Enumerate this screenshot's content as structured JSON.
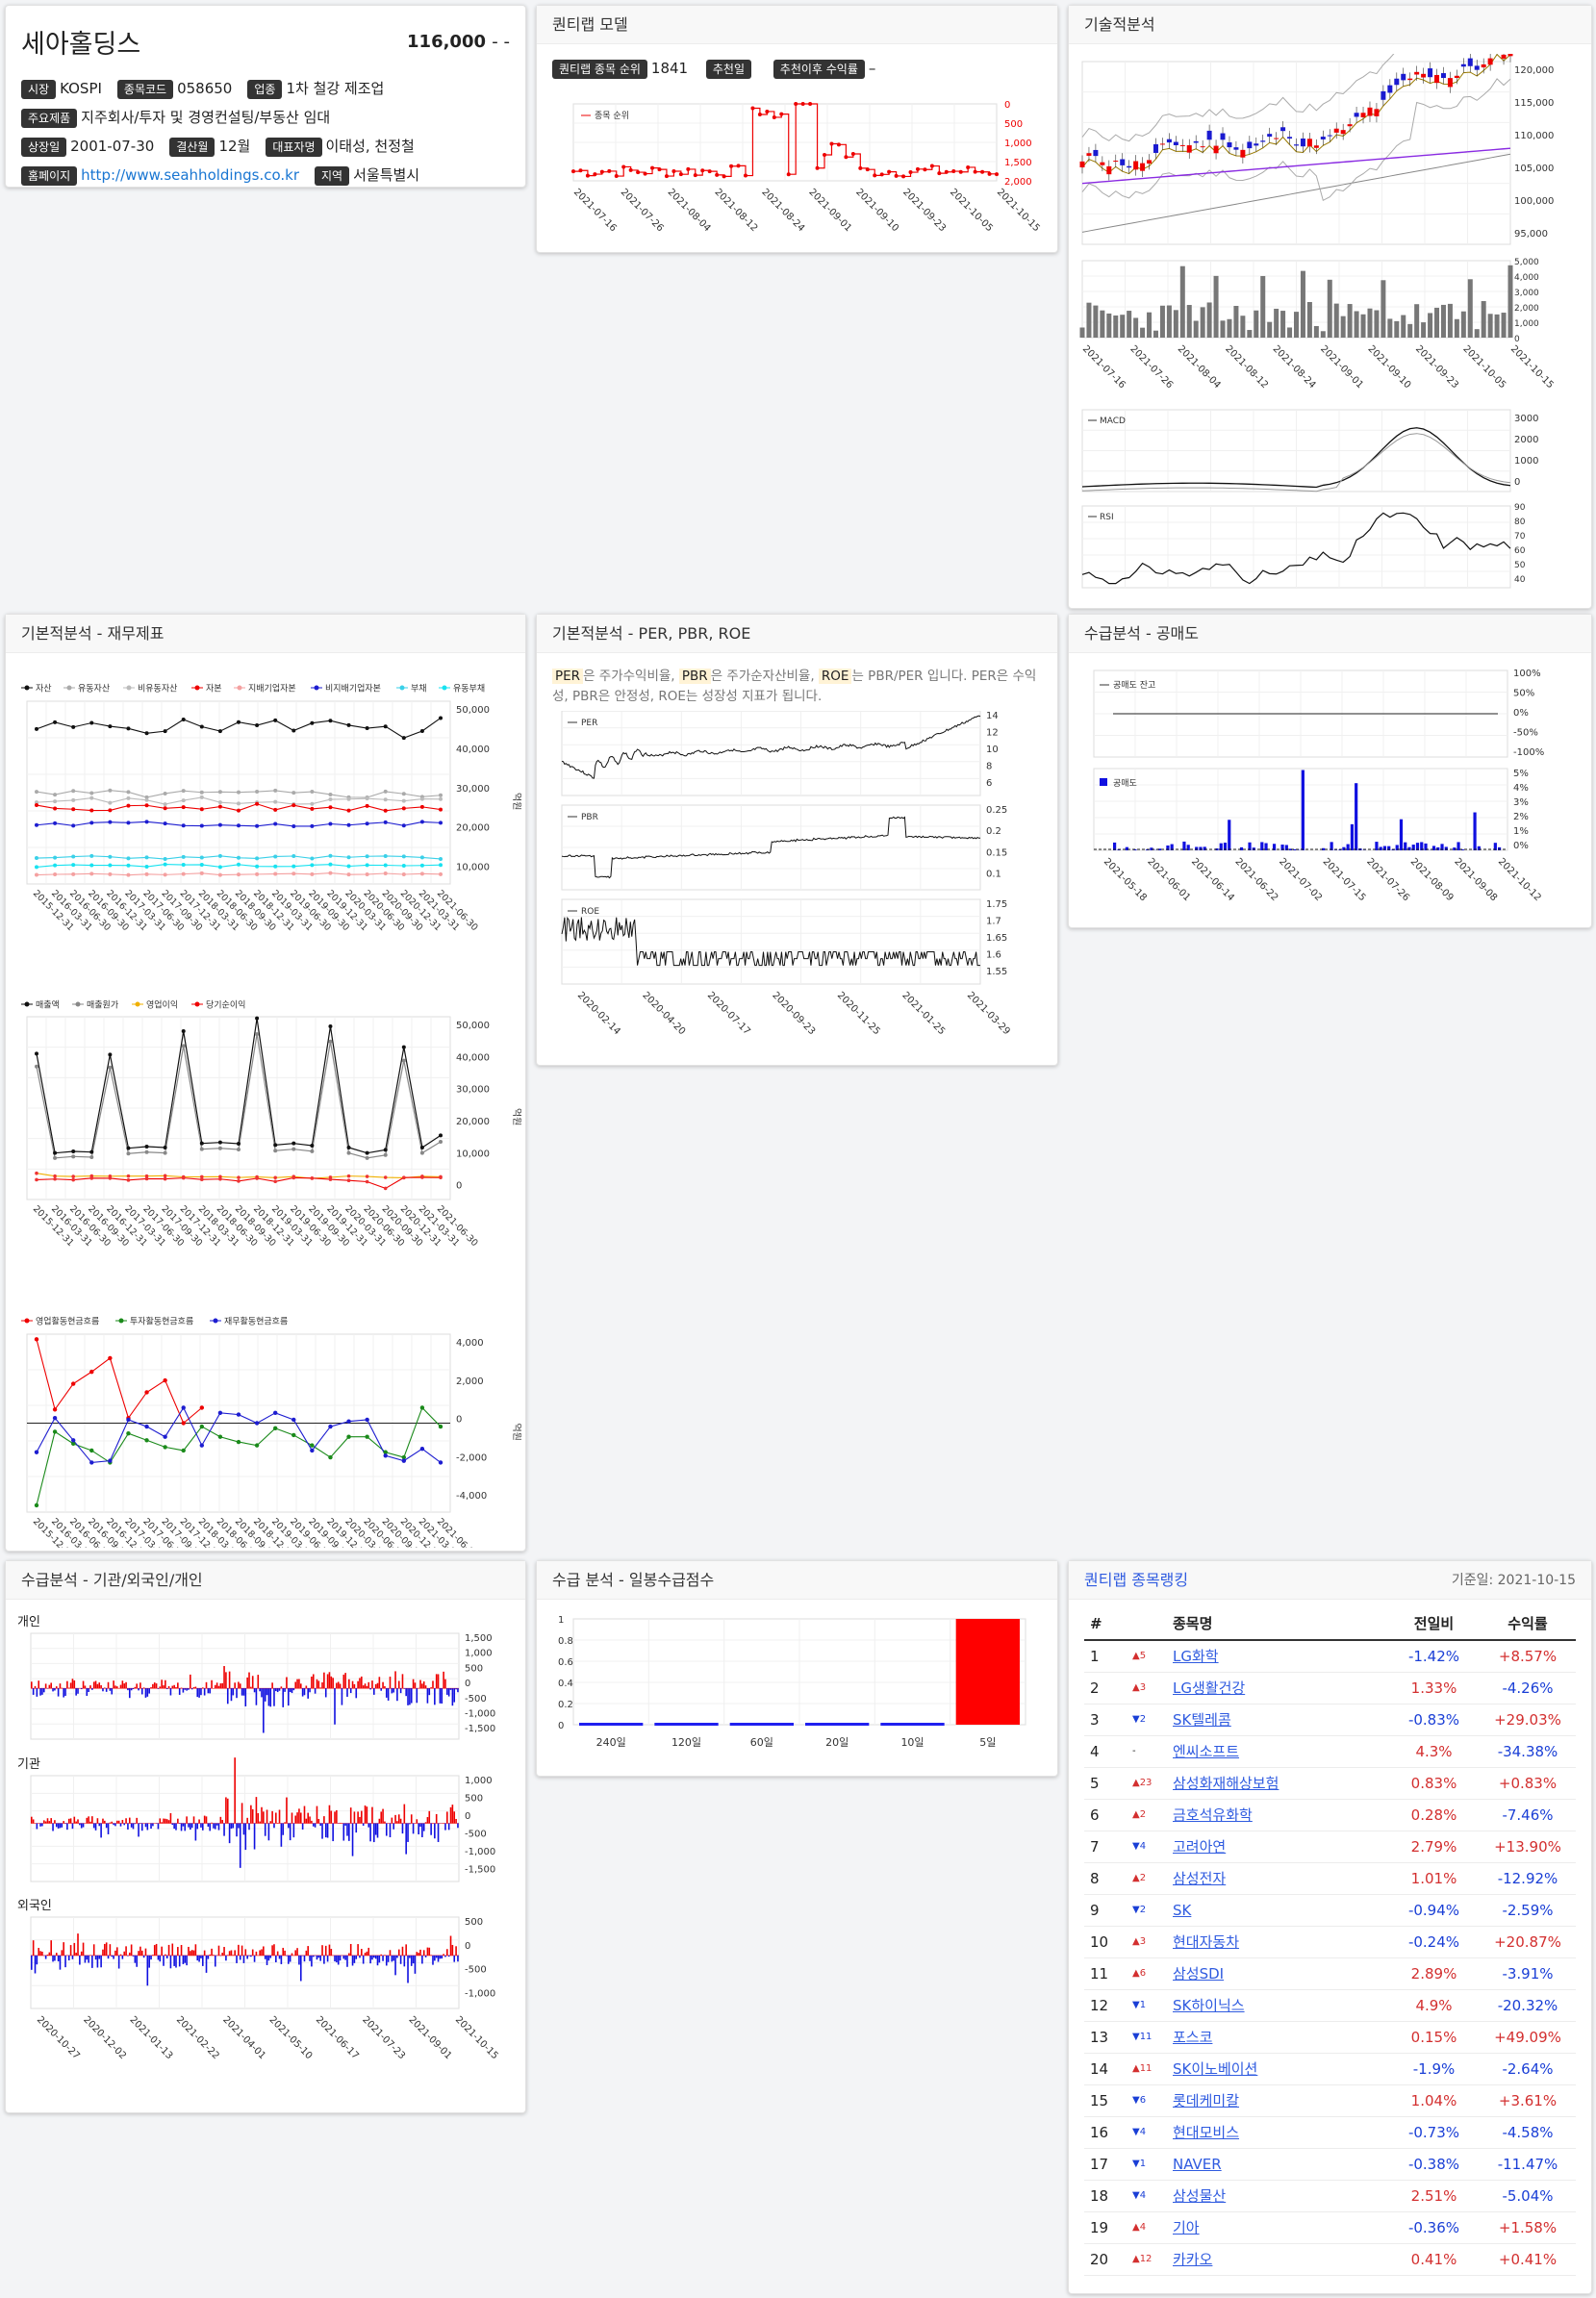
{
  "company": {
    "name": "세아홀딩스",
    "price": "116,000",
    "change": "- -",
    "fields": [
      [
        [
          "시장",
          "KOSPI"
        ],
        [
          "종목코드",
          "058650"
        ],
        [
          "업종",
          "1차 철강 제조업"
        ]
      ],
      [
        [
          "주요제품",
          "지주회사/투자 및 경영컨설팅/부동산 임대"
        ]
      ],
      [
        [
          "상장일",
          "2001-07-30"
        ],
        [
          "결산월",
          "12월"
        ],
        [
          "대표자명",
          "이태성, 천정철"
        ]
      ],
      [
        [
          "홈페이지",
          "http://www.seahholdings.co.kr"
        ],
        [
          "지역",
          "서울특별시"
        ]
      ]
    ]
  },
  "quant": {
    "title": "퀀티랩 모델",
    "rank_label": "퀀티랩 종목 순위",
    "rank_value": "1841",
    "rec_label": "추천일",
    "rec_value": "",
    "ret_label": "추천이후 수익률",
    "ret_value": "–",
    "legend": "종목 순위",
    "y_ticks": [
      "0",
      "500",
      "1,000",
      "1,500",
      "2,000"
    ],
    "x_ticks": [
      "2021-07-16",
      "2021-07-26",
      "2021-08-04",
      "2021-08-12",
      "2021-08-24",
      "2021-09-01",
      "2021-09-10",
      "2021-09-23",
      "2021-10-05",
      "2021-10-15"
    ]
  },
  "tech": {
    "title": "기술적분석",
    "price_ticks": [
      "120,000",
      "115,000",
      "110,000",
      "105,000",
      "100,000",
      "95,000"
    ],
    "vol_ticks": [
      "5,000",
      "4,000",
      "3,000",
      "2,000",
      "1,000",
      "0"
    ],
    "x_ticks": [
      "2021-07-16",
      "2021-07-26",
      "2021-08-04",
      "2021-08-12",
      "2021-08-24",
      "2021-09-01",
      "2021-09-10",
      "2021-09-23",
      "2021-10-05",
      "2021-10-15"
    ],
    "macd_label": "MACD",
    "macd_ticks": [
      "3000",
      "2000",
      "1000",
      "0"
    ],
    "rsi_label": "RSI",
    "rsi_ticks": [
      "90",
      "80",
      "70",
      "60",
      "50",
      "40"
    ]
  },
  "fund": {
    "title": "기본적분석 - 재무제표",
    "legend1": [
      "자산",
      "유동자산",
      "비유동자산",
      "자본",
      "지배기업자본",
      "비지배기업자본",
      "부채",
      "유동부채"
    ],
    "colors1": [
      "#111",
      "#aaa",
      "#bbb",
      "#e00",
      "#f4a0a0",
      "#1d1dd0",
      "#3ad0e8",
      "#17e2f0"
    ],
    "ticks1": [
      "50,000",
      "40,000",
      "30,000",
      "20,000",
      "10,000"
    ],
    "legend2": [
      "매출액",
      "매출원가",
      "영업이익",
      "당기순이익"
    ],
    "colors2": [
      "#111",
      "#888",
      "#f0b000",
      "#e00"
    ],
    "ticks2": [
      "50,000",
      "40,000",
      "30,000",
      "20,000",
      "10,000",
      "0"
    ],
    "legend3": [
      "영업활동현금흐름",
      "투자활동현금흐름",
      "재무활동현금흐름"
    ],
    "colors3": [
      "#e00",
      "#1a8a1a",
      "#1d1dd0"
    ],
    "ticks3": [
      "4,000",
      "2,000",
      "0",
      "-2,000",
      "-4,000"
    ],
    "unit": "억원",
    "x_ticks": [
      "2015-12-31",
      "2016-03-31",
      "2016-06-30",
      "2016-09-30",
      "2016-12-31",
      "2017-03-31",
      "2017-06-30",
      "2017-09-30",
      "2017-12-31",
      "2018-03-31",
      "2018-06-30",
      "2018-09-30",
      "2018-12-31",
      "2019-03-31",
      "2019-06-30",
      "2019-09-30",
      "2019-12-31",
      "2020-03-31",
      "2020-06-30",
      "2020-09-30",
      "2020-12-31",
      "2021-03-31",
      "2021-06-30"
    ]
  },
  "val": {
    "title": "기본적분석 - PER, PBR, ROE",
    "desc": [
      [
        "PER",
        true
      ],
      [
        "은 주가수익비율, ",
        false
      ],
      [
        "PBR",
        true
      ],
      [
        "은 주가순자산비율, ",
        false
      ],
      [
        "ROE",
        true
      ],
      [
        "는 PBR/PER 입니다. PER은 수익성, PBR은 안정성, ROE는 성장성 지표가 됩니다.",
        false
      ]
    ],
    "per_label": "PER",
    "per_ticks": [
      "14",
      "12",
      "10",
      "8",
      "6"
    ],
    "pbr_label": "PBR",
    "pbr_ticks": [
      "0.25",
      "0.2",
      "0.15",
      "0.1"
    ],
    "roe_label": "ROE",
    "roe_ticks": [
      "1.75",
      "1.7",
      "1.65",
      "1.6",
      "1.55"
    ],
    "x_ticks": [
      "2020-02-14",
      "2020-04-20",
      "2020-07-17",
      "2020-09-23",
      "2020-11-25",
      "2021-01-25",
      "2021-03-29"
    ]
  },
  "short": {
    "title": "수급분석 - 공매도",
    "bal_label": "공매도 잔고",
    "bal_ticks": [
      "100%",
      "50%",
      "0%",
      "-50%",
      "-100%"
    ],
    "vol_label": "공매도",
    "vol_ticks": [
      "5%",
      "4%",
      "3%",
      "2%",
      "1%",
      "0%"
    ],
    "x_ticks": [
      "2021-05-18",
      "2021-06-01",
      "2021-06-14",
      "2021-06-22",
      "2021-07-02",
      "2021-07-15",
      "2021-07-26",
      "2021-08-09",
      "2021-09-08",
      "2021-10-12"
    ]
  },
  "flow": {
    "title": "수급분석 - 기관/외국인/개인",
    "indiv": "개인",
    "indiv_ticks": [
      "1,500",
      "1,000",
      "500",
      "0",
      "-500",
      "-1,000",
      "-1,500"
    ],
    "inst": "기관",
    "inst_ticks": [
      "1,000",
      "500",
      "0",
      "-500",
      "-1,000",
      "-1,500"
    ],
    "foreign": "외국인",
    "foreign_ticks": [
      "500",
      "0",
      "-500",
      "-1,000"
    ],
    "x_ticks": [
      "2020-10-27",
      "2020-12-02",
      "2021-01-13",
      "2021-02-22",
      "2021-04-01",
      "2021-05-10",
      "2021-06-17",
      "2021-07-23",
      "2021-09-01",
      "2021-10-15"
    ]
  },
  "score": {
    "title": "수급 분석 - 일봉수급점수",
    "chart_data": {
      "type": "bar",
      "categories": [
        "240일",
        "120일",
        "60일",
        "20일",
        "10일",
        "5일"
      ],
      "values": [
        0,
        0,
        0,
        -0.01,
        -0.01,
        1
      ],
      "ylim": [
        0,
        1
      ]
    },
    "y_ticks": [
      "1",
      "0.8",
      "0.6",
      "0.4",
      "0.2",
      "0"
    ]
  },
  "ranking": {
    "title": "퀀티랩 종목랭킹",
    "date": "기준일: 2021-10-15",
    "headers": [
      "#",
      "종목명",
      "전일비",
      "수익률"
    ],
    "rows": [
      [
        "1",
        "▲5",
        "LG화학",
        "-1.42%",
        "+8.57%"
      ],
      [
        "2",
        "▲3",
        "LG생활건강",
        "1.33%",
        "-4.26%"
      ],
      [
        "3",
        "▼2",
        "SK텔레콤",
        "-0.83%",
        "+29.03%"
      ],
      [
        "4",
        "-",
        "엔씨소프트",
        "4.3%",
        "-34.38%"
      ],
      [
        "5",
        "▲23",
        "삼성화재해상보험",
        "0.83%",
        "+0.83%"
      ],
      [
        "6",
        "▲2",
        "금호석유화학",
        "0.28%",
        "-7.46%"
      ],
      [
        "7",
        "▼4",
        "고려아연",
        "2.79%",
        "+13.90%"
      ],
      [
        "8",
        "▲2",
        "삼성전자",
        "1.01%",
        "-12.92%"
      ],
      [
        "9",
        "▼2",
        "SK",
        "-0.94%",
        "-2.59%"
      ],
      [
        "10",
        "▲3",
        "현대자동차",
        "-0.24%",
        "+20.87%"
      ],
      [
        "11",
        "▲6",
        "삼성SDI",
        "2.89%",
        "-3.91%"
      ],
      [
        "12",
        "▼1",
        "SK하이닉스",
        "4.9%",
        "-20.32%"
      ],
      [
        "13",
        "▼11",
        "포스코",
        "0.15%",
        "+49.09%"
      ],
      [
        "14",
        "▲11",
        "SK이노베이션",
        "-1.9%",
        "-2.64%"
      ],
      [
        "15",
        "▼6",
        "롯데케미칼",
        "1.04%",
        "+3.61%"
      ],
      [
        "16",
        "▼4",
        "현대모비스",
        "-0.73%",
        "-4.58%"
      ],
      [
        "17",
        "▼1",
        "NAVER",
        "-0.38%",
        "-11.47%"
      ],
      [
        "18",
        "▼4",
        "삼성물산",
        "2.51%",
        "-5.04%"
      ],
      [
        "19",
        "▲4",
        "기아",
        "-0.36%",
        "+1.58%"
      ],
      [
        "20",
        "▲12",
        "카카오",
        "0.41%",
        "+0.41%"
      ]
    ]
  }
}
